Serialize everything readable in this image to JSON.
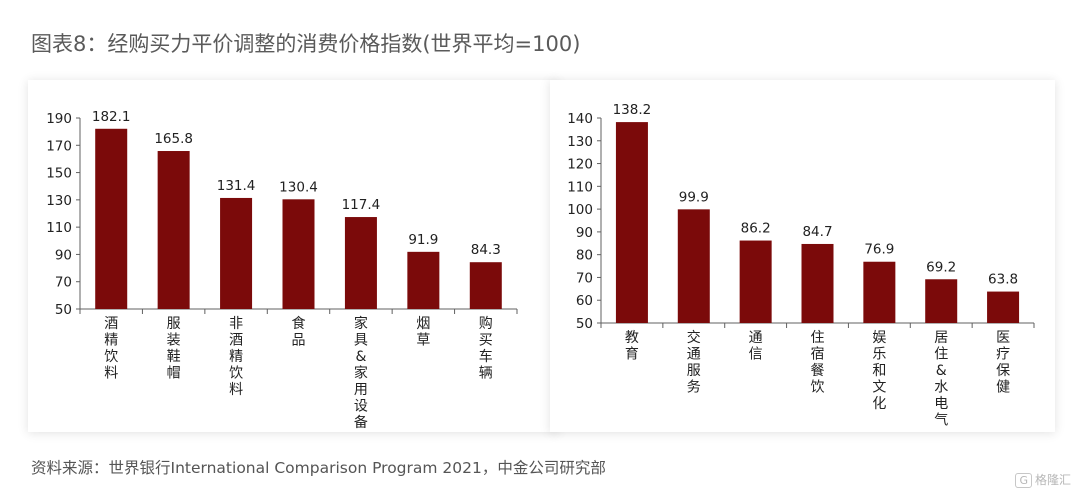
{
  "title": "图表8：经购买力平价调整的消费价格指数(世界平均=100)",
  "source": "资料来源：世界银行International Comparison Program 2021，中金公司研究部",
  "watermark": {
    "logo": "G",
    "text": "格隆汇"
  },
  "colors": {
    "bar": "#7b0a0a",
    "axis": "#606060",
    "text": "#222222"
  },
  "chart_data": [
    {
      "type": "bar",
      "title": "",
      "xlabel": "",
      "ylabel": "",
      "categories": [
        "酒精饮料",
        "服装鞋帽",
        "非酒精饮料",
        "食品",
        "家具&家用设备",
        "烟草",
        "购买车辆"
      ],
      "values": [
        182.1,
        165.8,
        131.4,
        130.4,
        117.4,
        91.9,
        84.3
      ],
      "value_labels": [
        "182.1",
        "165.8",
        "131.4",
        "130.4",
        "117.4",
        "91.9",
        "84.3"
      ],
      "ylim": [
        50,
        190
      ],
      "yticks": [
        "50",
        "70",
        "90",
        "110",
        "130",
        "150",
        "170",
        "190"
      ],
      "grid": false,
      "legend": "none"
    },
    {
      "type": "bar",
      "title": "",
      "xlabel": "",
      "ylabel": "",
      "categories": [
        "教育",
        "交通服务",
        "通信",
        "住宿餐饮",
        "娱乐和文化",
        "居住&水电气",
        "医疗保健"
      ],
      "values": [
        138.2,
        99.9,
        86.2,
        84.7,
        76.9,
        69.2,
        63.8
      ],
      "value_labels": [
        "138.2",
        "99.9",
        "86.2",
        "84.7",
        "76.9",
        "69.2",
        "63.8"
      ],
      "ylim": [
        50,
        140
      ],
      "yticks": [
        "50",
        "60",
        "70",
        "80",
        "90",
        "100",
        "110",
        "120",
        "130",
        "140"
      ],
      "grid": false,
      "legend": "none"
    }
  ]
}
